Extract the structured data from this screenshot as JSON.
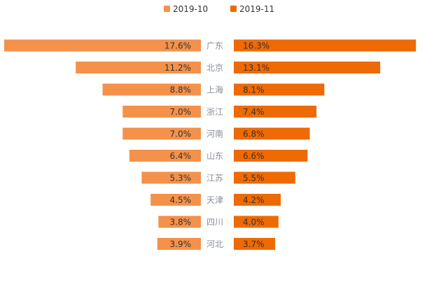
{
  "colors": {
    "series_2019_10": "#F4914A",
    "series_2019_11": "#EE6A04",
    "category_text": "#8a8f97",
    "value_text": "#333333"
  },
  "chart_data": {
    "type": "bar",
    "orientation": "horizontal-butterfly",
    "title": "",
    "legend_position": "top-center",
    "categories": [
      "广东",
      "北京",
      "上海",
      "浙江",
      "河南",
      "山东",
      "江苏",
      "天津",
      "四川",
      "河北"
    ],
    "series": [
      {
        "name": "2019-10",
        "direction": "left",
        "values": [
          17.6,
          11.2,
          8.8,
          7.0,
          7.0,
          6.4,
          5.3,
          4.5,
          3.8,
          3.9
        ],
        "labels": [
          "17.6%",
          "11.2%",
          "8.8%",
          "7.0%",
          "7.0%",
          "6.4%",
          "5.3%",
          "4.5%",
          "3.8%",
          "3.9%"
        ]
      },
      {
        "name": "2019-11",
        "direction": "right",
        "values": [
          16.3,
          13.1,
          8.1,
          7.4,
          6.8,
          6.6,
          5.5,
          4.2,
          4.0,
          3.7
        ],
        "labels": [
          "16.3%",
          "13.1%",
          "8.1%",
          "7.4%",
          "6.8%",
          "6.6%",
          "5.5%",
          "4.2%",
          "4.0%",
          "3.7%"
        ]
      }
    ],
    "unit": "%"
  }
}
